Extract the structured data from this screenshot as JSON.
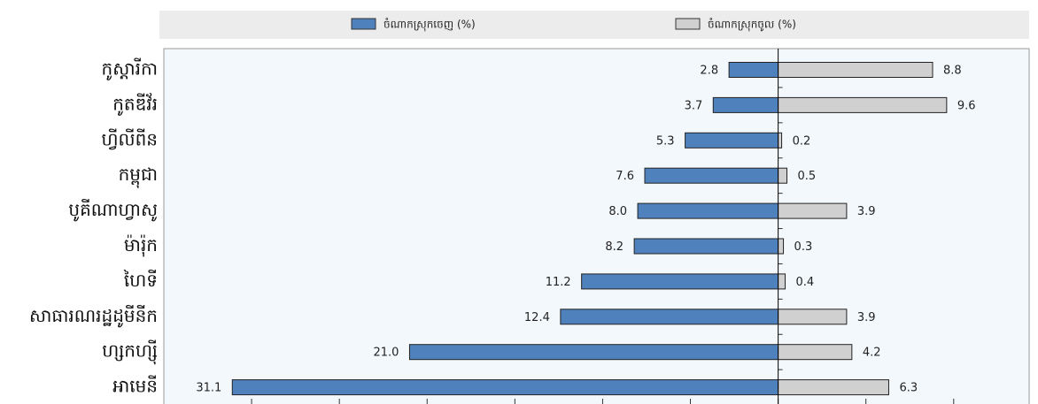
{
  "chart_data": {
    "type": "diverging-bar",
    "categories": [
      "កូស្តារីកា",
      "កូតឌីវ័រ",
      "ហ្វីលីពីន",
      "កម្ពុជា",
      "បូគីណាហ្វាសូ",
      "ម៉ារ៉ុក",
      "ហៃទី",
      "សាធារណរដ្ឋដូមីនីក",
      "ហ្សកហ្ស៊ី",
      "អាមេនី"
    ],
    "series": [
      {
        "name": "ចំណាកស្រុកចេញ (%)",
        "color": "#4f81bd",
        "values": [
          2.8,
          3.7,
          5.3,
          7.6,
          8,
          8.2,
          11.2,
          12.4,
          21,
          31.1
        ],
        "value_labels": [
          "2.8",
          "3.7",
          "5.3",
          "7.6",
          "8.0",
          "8.2",
          "11.2",
          "12.4",
          "21.0",
          "31.1"
        ]
      },
      {
        "name": "ចំណាកស្រុកចូល (%)",
        "color": "#d0d0d0",
        "values": [
          8.8,
          9.6,
          0.2,
          0.5,
          3.9,
          0.3,
          0.4,
          3.9,
          4.2,
          6.3
        ],
        "value_labels": [
          "8.8",
          "9.6",
          "0.2",
          "0.5",
          "3.9",
          "0.3",
          "0.4",
          "3.9",
          "4.2",
          "6.3"
        ]
      }
    ],
    "xlim": [
      -35,
      14.3
    ],
    "xticks": [
      -30,
      -25,
      -20,
      -15,
      -10,
      -5,
      0,
      5,
      10
    ]
  }
}
